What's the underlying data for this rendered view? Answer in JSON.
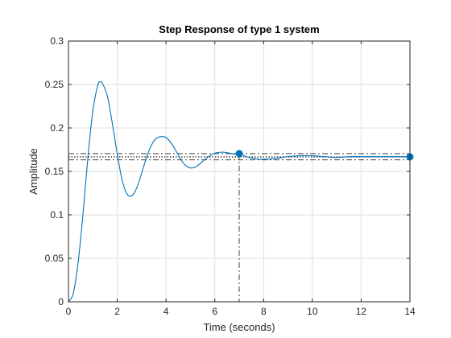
{
  "chart_data": {
    "type": "line",
    "title": "Step Response of type 1 system",
    "xlabel": "Time (seconds)",
    "ylabel": "Amplitude",
    "xlim": [
      0,
      14
    ],
    "ylim": [
      0,
      0.3
    ],
    "xticks": [
      0,
      2,
      4,
      6,
      8,
      10,
      12,
      14
    ],
    "yticks": [
      0,
      0.05,
      0.1,
      0.15,
      0.2,
      0.25,
      0.3
    ],
    "xtick_labels": [
      "0",
      "2",
      "4",
      "6",
      "8",
      "10",
      "12",
      "14"
    ],
    "ytick_labels": [
      "0",
      "0.05",
      "0.1",
      "0.15",
      "0.2",
      "0.25",
      "0.3"
    ],
    "grid": true,
    "series": [
      {
        "color": "#0072bd",
        "x": [
          0,
          0.2,
          0.4,
          0.6,
          0.8,
          1.0,
          1.2,
          1.3,
          1.4,
          1.6,
          1.8,
          2.0,
          2.2,
          2.4,
          2.6,
          2.8,
          3.0,
          3.2,
          3.4,
          3.6,
          3.8,
          4.0,
          4.2,
          4.4,
          4.6,
          4.8,
          5.0,
          5.2,
          5.4,
          5.6,
          5.8,
          6.0,
          6.2,
          6.4,
          6.6,
          6.8,
          7.0,
          7.2,
          7.4,
          7.6,
          7.8,
          8.0,
          8.5,
          9.0,
          9.5,
          10.0,
          10.5,
          11.0,
          11.5,
          12.0,
          12.5,
          13.0,
          13.5,
          14.0
        ],
        "y": [
          0,
          0.01,
          0.046,
          0.102,
          0.167,
          0.22,
          0.249,
          0.253,
          0.251,
          0.236,
          0.205,
          0.17,
          0.14,
          0.124,
          0.122,
          0.131,
          0.148,
          0.166,
          0.18,
          0.188,
          0.19,
          0.189,
          0.183,
          0.174,
          0.164,
          0.157,
          0.154,
          0.155,
          0.159,
          0.164,
          0.168,
          0.171,
          0.172,
          0.172,
          0.171,
          0.17,
          0.17,
          0.168,
          0.166,
          0.165,
          0.164,
          0.164,
          0.165,
          0.167,
          0.168,
          0.168,
          0.167,
          0.166,
          0.167,
          0.167,
          0.167,
          0.167,
          0.167,
          0.167
        ]
      }
    ],
    "reference_lines": {
      "upper_band": 0.1705,
      "lower_band": 0.1633,
      "final_value": 0.1667,
      "settling_time": 7.0
    },
    "markers": [
      {
        "x": 7.0,
        "y": 0.1705
      },
      {
        "x": 14.0,
        "y": 0.1667
      }
    ]
  }
}
